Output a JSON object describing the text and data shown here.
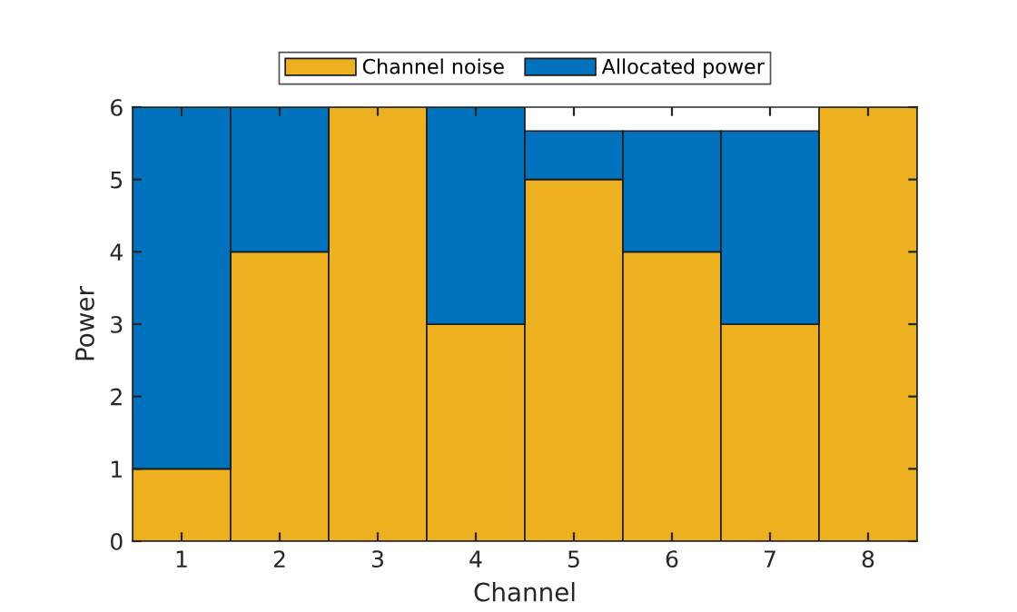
{
  "chart_data": {
    "type": "bar",
    "stacked": true,
    "xlabel": "Channel",
    "ylabel": "Power",
    "categories": [
      "1",
      "2",
      "3",
      "4",
      "5",
      "6",
      "7",
      "8"
    ],
    "series": [
      {
        "name": "Channel noise",
        "color": "#edb120",
        "values": [
          1,
          4,
          6,
          3,
          5,
          4,
          3,
          6
        ]
      },
      {
        "name": "Allocated power",
        "color": "#0072bd",
        "values": [
          5,
          2,
          0,
          3,
          0.67,
          1.67,
          2.67,
          0
        ]
      }
    ],
    "ylim": [
      0,
      6
    ],
    "yticks": [
      0,
      1,
      2,
      3,
      4,
      5,
      6
    ],
    "grid": false,
    "legend": "top"
  }
}
